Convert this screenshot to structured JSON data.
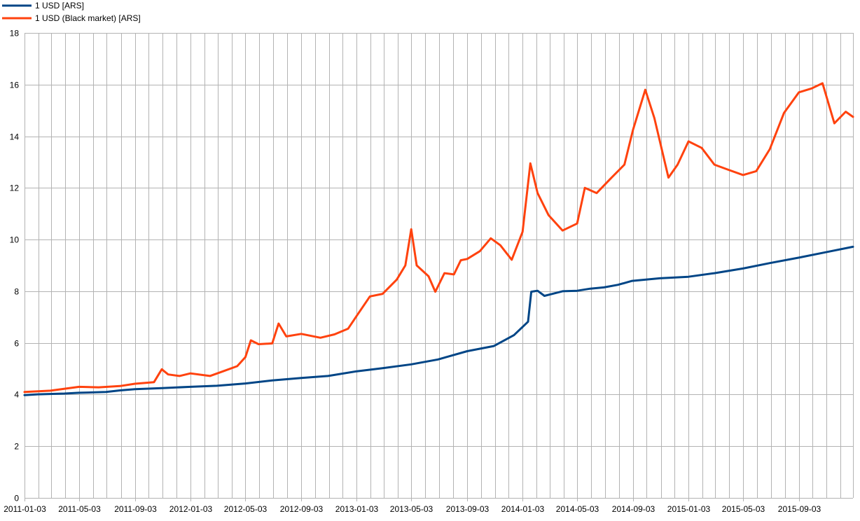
{
  "chart_data": {
    "type": "line",
    "x_type": "date",
    "xlim": [
      "2011-01-03",
      "2015-12-31"
    ],
    "ylim": [
      0,
      18
    ],
    "y_ticks": [
      0,
      2,
      4,
      6,
      8,
      10,
      12,
      14,
      16,
      18
    ],
    "x_tick_labels": [
      "2011-01-03",
      "2011-05-03",
      "2011-09-03",
      "2012-01-03",
      "2012-05-03",
      "2012-09-03",
      "2013-01-03",
      "2013-05-03",
      "2013-09-03",
      "2014-01-03",
      "2014-05-03",
      "2014-09-03",
      "2015-01-03",
      "2015-05-03",
      "2015-09-03"
    ],
    "grid": true,
    "legend_position": "top-left",
    "colors": {
      "official": "#004586",
      "black": "#ff420e",
      "grid": "#b3b3b3"
    },
    "series": [
      {
        "name": "1 USD [ARS]",
        "color": "#004586",
        "points": [
          [
            "2011-01-03",
            3.98
          ],
          [
            "2011-02-01",
            4.01
          ],
          [
            "2011-04-01",
            4.04
          ],
          [
            "2011-05-03",
            4.07
          ],
          [
            "2011-07-01",
            4.1
          ],
          [
            "2011-08-01",
            4.16
          ],
          [
            "2011-09-03",
            4.21
          ],
          [
            "2011-11-01",
            4.25
          ],
          [
            "2012-01-03",
            4.3
          ],
          [
            "2012-03-01",
            4.34
          ],
          [
            "2012-05-03",
            4.43
          ],
          [
            "2012-07-01",
            4.55
          ],
          [
            "2012-09-03",
            4.64
          ],
          [
            "2012-11-01",
            4.72
          ],
          [
            "2013-01-03",
            4.9
          ],
          [
            "2013-03-01",
            5.02
          ],
          [
            "2013-05-03",
            5.17
          ],
          [
            "2013-07-01",
            5.36
          ],
          [
            "2013-09-03",
            5.68
          ],
          [
            "2013-11-01",
            5.88
          ],
          [
            "2013-12-15",
            6.3
          ],
          [
            "2014-01-15",
            6.82
          ],
          [
            "2014-01-22",
            7.98
          ],
          [
            "2014-02-05",
            8.02
          ],
          [
            "2014-02-20",
            7.82
          ],
          [
            "2014-03-10",
            7.9
          ],
          [
            "2014-04-01",
            8.0
          ],
          [
            "2014-05-03",
            8.02
          ],
          [
            "2014-06-01",
            8.1
          ],
          [
            "2014-07-01",
            8.15
          ],
          [
            "2014-08-01",
            8.25
          ],
          [
            "2014-09-01",
            8.4
          ],
          [
            "2014-11-01",
            8.5
          ],
          [
            "2015-01-03",
            8.56
          ],
          [
            "2015-03-01",
            8.7
          ],
          [
            "2015-05-03",
            8.88
          ],
          [
            "2015-07-01",
            9.09
          ],
          [
            "2015-09-03",
            9.3
          ],
          [
            "2015-11-01",
            9.51
          ],
          [
            "2015-12-31",
            9.72
          ]
        ]
      },
      {
        "name": "1 USD (Black market) [ARS]",
        "color": "#ff420e",
        "points": [
          [
            "2011-01-03",
            4.1
          ],
          [
            "2011-03-01",
            4.15
          ],
          [
            "2011-05-03",
            4.3
          ],
          [
            "2011-06-15",
            4.28
          ],
          [
            "2011-08-01",
            4.33
          ],
          [
            "2011-09-03",
            4.42
          ],
          [
            "2011-10-15",
            4.48
          ],
          [
            "2011-11-01",
            4.98
          ],
          [
            "2011-11-15",
            4.78
          ],
          [
            "2011-12-10",
            4.72
          ],
          [
            "2012-01-03",
            4.82
          ],
          [
            "2012-02-15",
            4.72
          ],
          [
            "2012-03-15",
            4.9
          ],
          [
            "2012-04-15",
            5.1
          ],
          [
            "2012-05-03",
            5.45
          ],
          [
            "2012-05-15",
            6.1
          ],
          [
            "2012-06-01",
            5.95
          ],
          [
            "2012-07-01",
            5.98
          ],
          [
            "2012-07-15",
            6.75
          ],
          [
            "2012-08-01",
            6.25
          ],
          [
            "2012-09-03",
            6.35
          ],
          [
            "2012-10-15",
            6.2
          ],
          [
            "2012-11-15",
            6.33
          ],
          [
            "2012-12-15",
            6.55
          ],
          [
            "2013-01-03",
            7.05
          ],
          [
            "2013-02-01",
            7.8
          ],
          [
            "2013-03-01",
            7.9
          ],
          [
            "2013-04-01",
            8.45
          ],
          [
            "2013-04-20",
            9.0
          ],
          [
            "2013-05-03",
            10.4
          ],
          [
            "2013-05-15",
            9.0
          ],
          [
            "2013-06-10",
            8.58
          ],
          [
            "2013-06-25",
            7.98
          ],
          [
            "2013-07-15",
            8.7
          ],
          [
            "2013-08-05",
            8.65
          ],
          [
            "2013-08-20",
            9.2
          ],
          [
            "2013-09-03",
            9.25
          ],
          [
            "2013-10-01",
            9.55
          ],
          [
            "2013-10-25",
            10.05
          ],
          [
            "2013-11-15",
            9.78
          ],
          [
            "2013-12-10",
            9.22
          ],
          [
            "2014-01-03",
            10.3
          ],
          [
            "2014-01-20",
            12.95
          ],
          [
            "2014-02-05",
            11.8
          ],
          [
            "2014-03-01",
            10.95
          ],
          [
            "2014-04-01",
            10.35
          ],
          [
            "2014-05-03",
            10.62
          ],
          [
            "2014-05-20",
            12.0
          ],
          [
            "2014-06-15",
            11.8
          ],
          [
            "2014-07-15",
            12.35
          ],
          [
            "2014-08-15",
            12.9
          ],
          [
            "2014-09-03",
            14.25
          ],
          [
            "2014-09-30",
            15.8
          ],
          [
            "2014-10-20",
            14.7
          ],
          [
            "2014-11-20",
            12.4
          ],
          [
            "2014-12-10",
            12.9
          ],
          [
            "2015-01-03",
            13.8
          ],
          [
            "2015-02-01",
            13.55
          ],
          [
            "2015-03-01",
            12.9
          ],
          [
            "2015-04-01",
            12.7
          ],
          [
            "2015-05-03",
            12.5
          ],
          [
            "2015-06-01",
            12.65
          ],
          [
            "2015-07-01",
            13.5
          ],
          [
            "2015-08-01",
            14.9
          ],
          [
            "2015-09-03",
            15.7
          ],
          [
            "2015-10-01",
            15.85
          ],
          [
            "2015-10-25",
            16.05
          ],
          [
            "2015-11-20",
            14.5
          ],
          [
            "2015-12-15",
            14.95
          ],
          [
            "2015-12-31",
            14.75
          ]
        ]
      }
    ]
  }
}
